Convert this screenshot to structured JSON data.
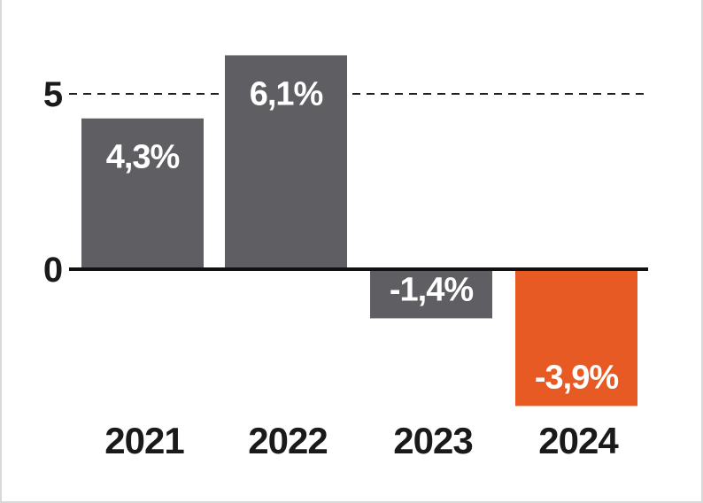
{
  "chart_data": {
    "type": "bar",
    "categories": [
      "2021",
      "2022",
      "2023",
      "2024"
    ],
    "values": [
      4.3,
      6.1,
      -1.4,
      -3.9
    ],
    "data_labels": [
      "4,3%",
      "6,1%",
      "-1,4%",
      "-3,9%"
    ],
    "y_ticks": [
      {
        "value": 0,
        "label": "0"
      },
      {
        "value": 5,
        "label": "5"
      }
    ],
    "ylim": [
      -3.9,
      6.1
    ],
    "title": "",
    "xlabel": "",
    "ylabel": "",
    "grid": "dashed reference line at 5",
    "colors": {
      "default_bar": "#5f5f63",
      "highlight_bar": "#e85a24",
      "highlight_category": "2024",
      "axis": "#111111",
      "gridline": "#222222",
      "data_label_text": "#ffffff",
      "tick_text": "#1a1a1a"
    }
  }
}
